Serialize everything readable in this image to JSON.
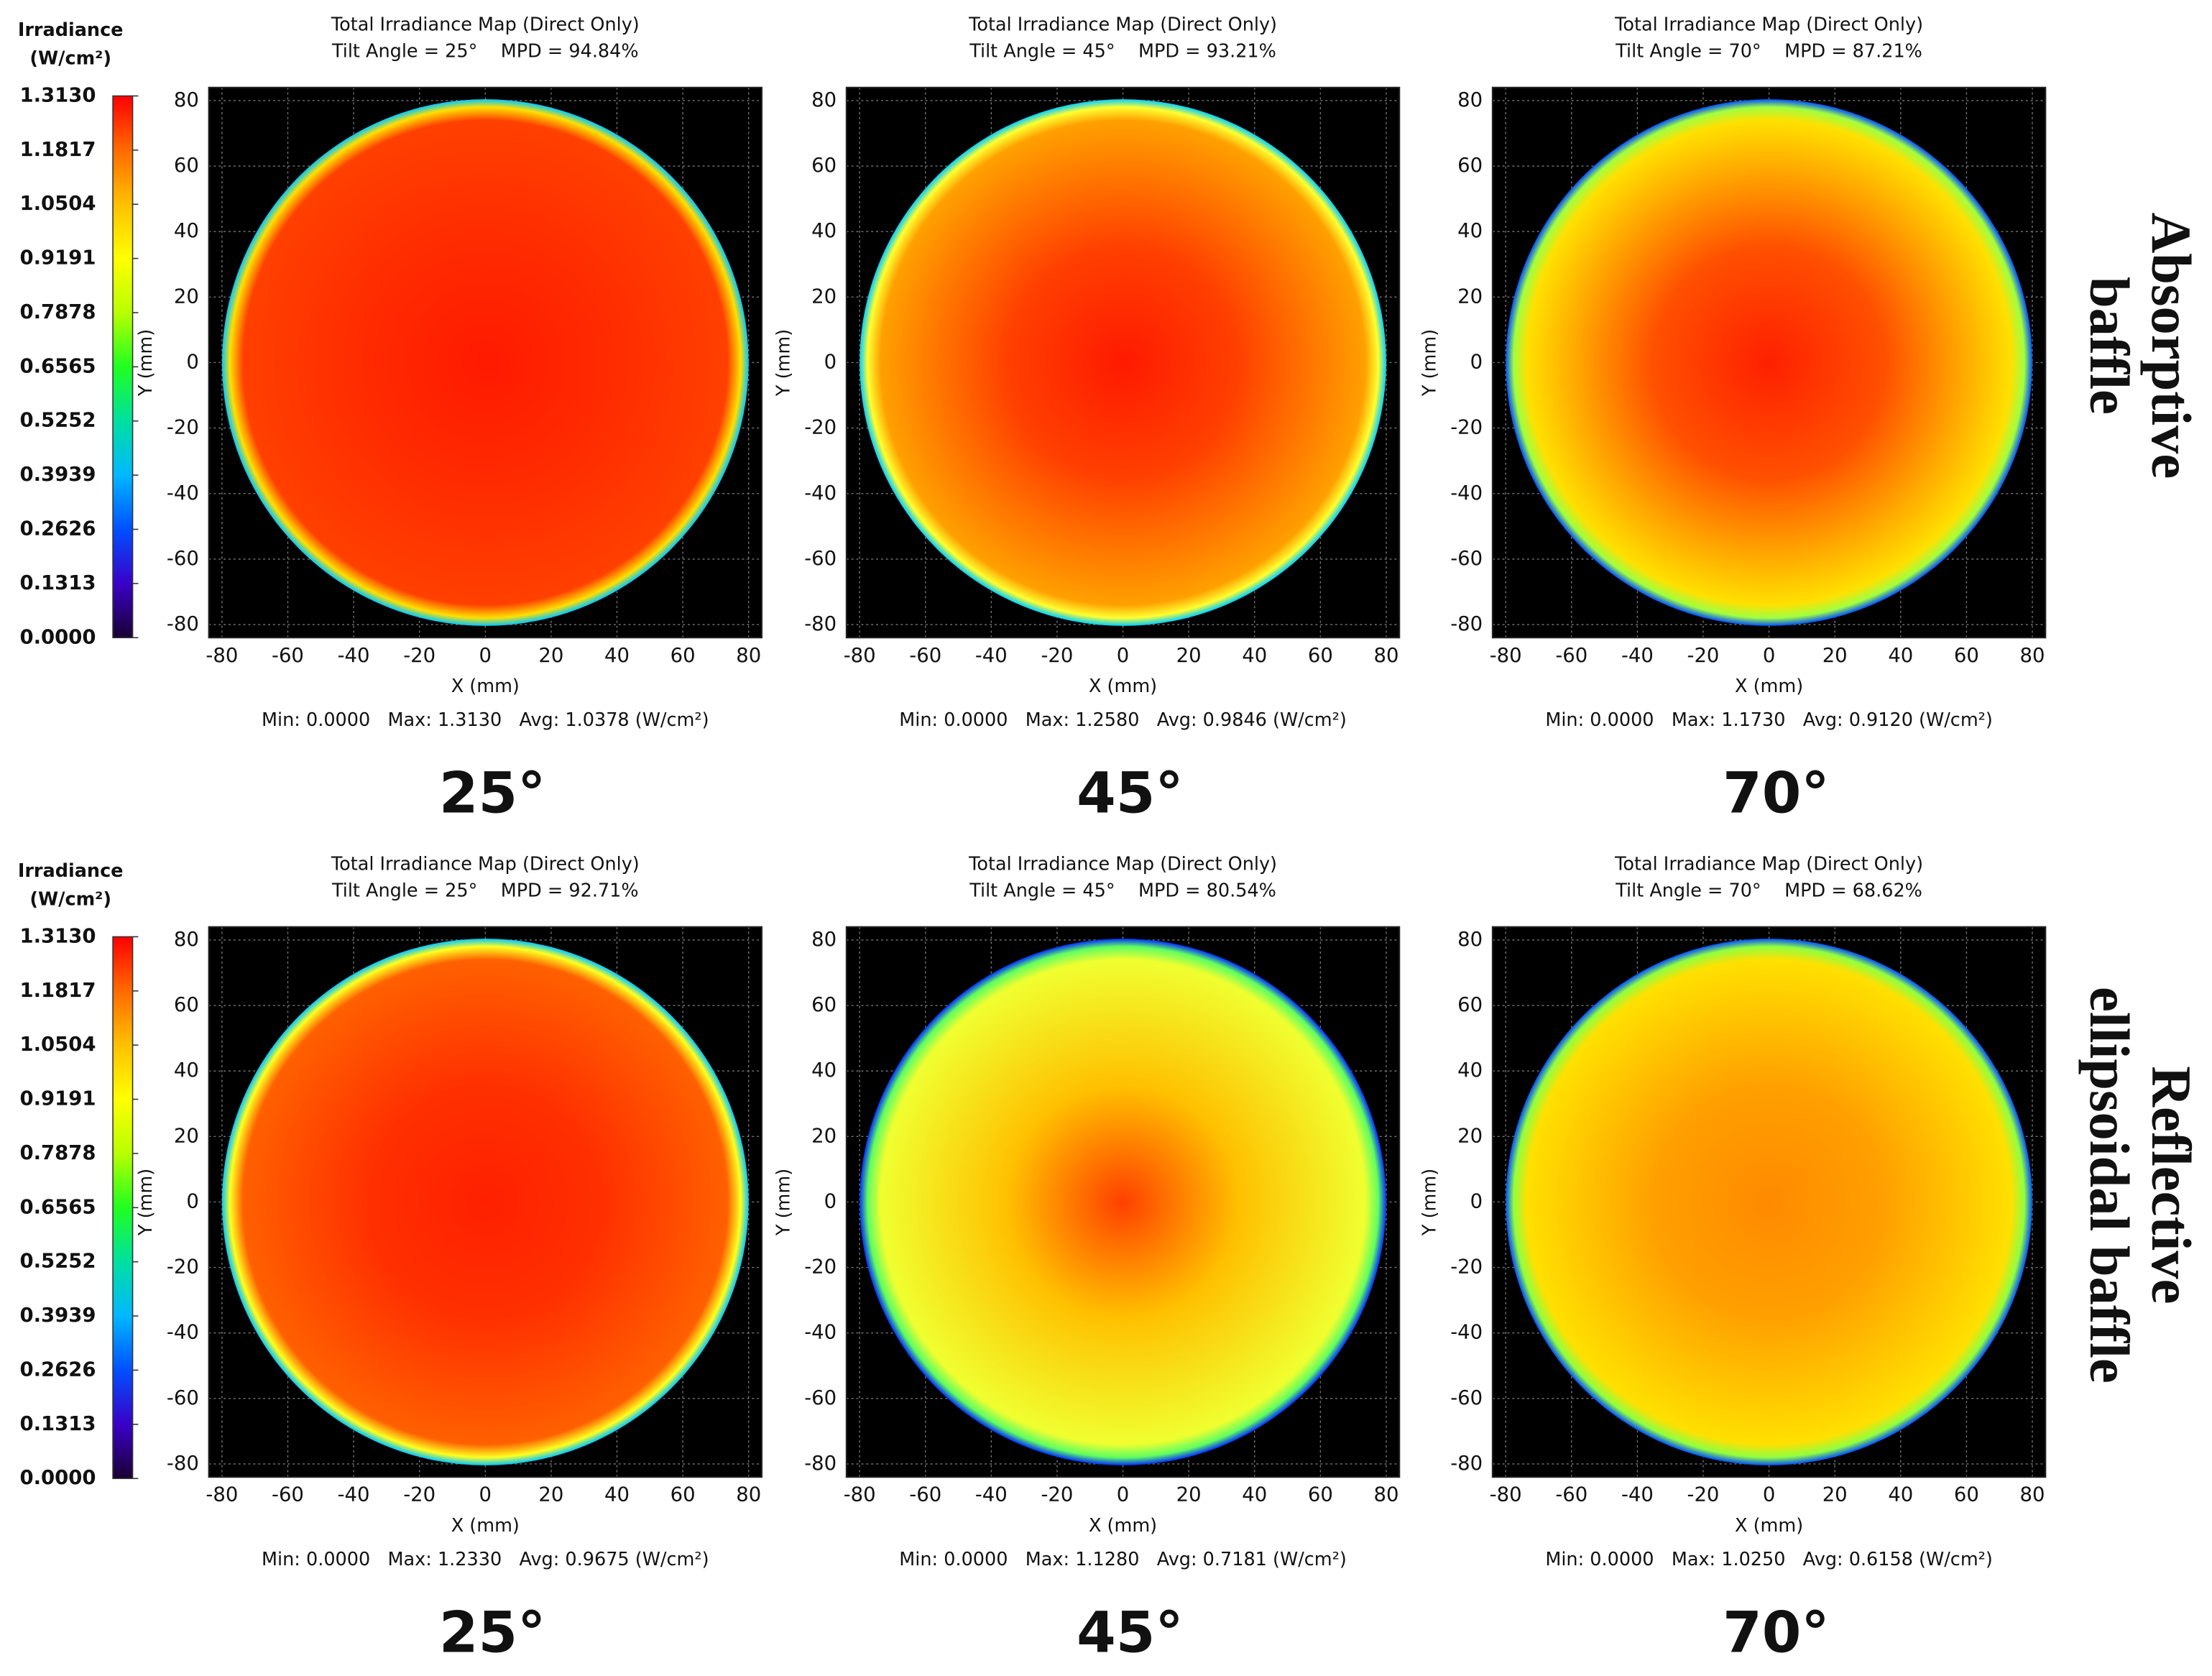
{
  "row_labels": [
    [
      "Absorptive",
      "baffle"
    ],
    [
      "Reflective",
      "ellipsoidal baffle"
    ]
  ],
  "chart_data": [
    {
      "type": "colorbar",
      "title": "Irradiance",
      "unit": "(W/cm²)",
      "clim": [
        0,
        1.313
      ],
      "colors": [
        "#1a0033",
        "#3a00c8",
        "#0050ff",
        "#00b8ff",
        "#00e0a0",
        "#20ff20",
        "#b8ff00",
        "#ffff00",
        "#ffc000",
        "#ff6a00",
        "#ff0000"
      ],
      "ticks": [
        {
          "value": 0,
          "label": "0.0000"
        },
        0.1313,
        0.2626,
        0.3939,
        0.5252,
        0.6565,
        0.7878,
        0.9191,
        1.0504,
        1.1817,
        {
          "value": 1.313,
          "label": "1.3130"
        }
      ]
    },
    {
      "type": "heatmap",
      "title": "Total Irradiance Map (Direct Only)",
      "subtitle": "Tilt Angle = 25°    MPD = 94.84%",
      "xlabel": "X (mm)",
      "ylabel": "Y (mm)",
      "xlim": [
        -84,
        84
      ],
      "ylim": [
        -84,
        84
      ],
      "xticks": [
        -80,
        -60,
        -40,
        -20,
        0,
        20,
        40,
        60,
        80
      ],
      "yticks": [
        -80,
        -60,
        -40,
        -20,
        0,
        20,
        40,
        60,
        80
      ],
      "grid": true,
      "stats": "Min: 0.0000   Max: 1.3130   Avg: 1.0378 (W/cm²)",
      "angle_label": "25°",
      "fill_colors": [
        "#ff1a00",
        "#ff2a00",
        "#ff4000",
        "#ffe000",
        "#00c8ff"
      ]
    },
    {
      "type": "heatmap",
      "title": "Total Irradiance Map (Direct Only)",
      "subtitle": "Tilt Angle = 45°    MPD = 93.21%",
      "xlabel": "X (mm)",
      "ylabel": "Y (mm)",
      "xlim": [
        -84,
        84
      ],
      "ylim": [
        -84,
        84
      ],
      "xticks": [
        -80,
        -60,
        -40,
        -20,
        0,
        20,
        40,
        60,
        80
      ],
      "yticks": [
        -80,
        -60,
        -40,
        -20,
        0,
        20,
        40,
        60,
        80
      ],
      "grid": true,
      "stats": "Min: 0.0000   Max: 1.2580   Avg: 0.9846 (W/cm²)",
      "angle_label": "45°",
      "fill_colors": [
        "#ff1a00",
        "#ff4000",
        "#ffa000",
        "#ffff30",
        "#00d0ff"
      ]
    },
    {
      "type": "heatmap",
      "title": "Total Irradiance Map (Direct Only)",
      "subtitle": "Tilt Angle = 70°    MPD = 87.21%",
      "xlabel": "X (mm)",
      "ylabel": "Y (mm)",
      "xlim": [
        -84,
        84
      ],
      "ylim": [
        -84,
        84
      ],
      "xticks": [
        -80,
        -60,
        -40,
        -20,
        0,
        20,
        40,
        60,
        80
      ],
      "yticks": [
        -80,
        -60,
        -40,
        -20,
        0,
        20,
        40,
        60,
        80
      ],
      "grid": true,
      "stats": "Min: 0.0000   Max: 1.1730   Avg: 0.9120 (W/cm²)",
      "angle_label": "70°",
      "fill_colors": [
        "#ff2000",
        "#ff5000",
        "#ffe000",
        "#a0ff40",
        "#0050ff"
      ]
    },
    {
      "type": "colorbar",
      "title": "Irradiance",
      "unit": "(W/cm²)",
      "clim": [
        0,
        1.313
      ],
      "colors": [
        "#1a0033",
        "#3a00c8",
        "#0050ff",
        "#00b8ff",
        "#00e0a0",
        "#20ff20",
        "#b8ff00",
        "#ffff00",
        "#ffc000",
        "#ff6a00",
        "#ff0000"
      ],
      "ticks": [
        {
          "value": 0,
          "label": "0.0000"
        },
        0.1313,
        0.2626,
        0.3939,
        0.5252,
        0.6565,
        0.7878,
        0.9191,
        1.0504,
        1.1817,
        {
          "value": 1.313,
          "label": "1.3130"
        }
      ]
    },
    {
      "type": "heatmap",
      "title": "Total Irradiance Map (Direct Only)",
      "subtitle": "Tilt Angle = 25°    MPD = 92.71%",
      "xlabel": "X (mm)",
      "ylabel": "Y (mm)",
      "xlim": [
        -84,
        84
      ],
      "ylim": [
        -84,
        84
      ],
      "xticks": [
        -80,
        -60,
        -40,
        -20,
        0,
        20,
        40,
        60,
        80
      ],
      "yticks": [
        -80,
        -60,
        -40,
        -20,
        0,
        20,
        40,
        60,
        80
      ],
      "grid": true,
      "stats": "Min: 0.0000   Max: 1.2330   Avg: 0.9675 (W/cm²)",
      "angle_label": "25°",
      "fill_colors": [
        "#ff2000",
        "#ff3000",
        "#ff6000",
        "#ffff20",
        "#00c8ff"
      ]
    },
    {
      "type": "heatmap",
      "title": "Total Irradiance Map (Direct Only)",
      "subtitle": "Tilt Angle = 45°    MPD = 80.54%",
      "xlabel": "X (mm)",
      "ylabel": "Y (mm)",
      "xlim": [
        -84,
        84
      ],
      "ylim": [
        -84,
        84
      ],
      "xticks": [
        -80,
        -60,
        -40,
        -20,
        0,
        20,
        40,
        60,
        80
      ],
      "yticks": [
        -80,
        -60,
        -40,
        -20,
        0,
        20,
        40,
        60,
        80
      ],
      "grid": true,
      "stats": "Min: 0.0000   Max: 1.1280   Avg: 0.7181 (W/cm²)",
      "angle_label": "45°",
      "fill_colors": [
        "#ff4000",
        "#ffc000",
        "#f0ff30",
        "#60ff60",
        "#0030ff"
      ]
    },
    {
      "type": "heatmap",
      "title": "Total Irradiance Map (Direct Only)",
      "subtitle": "Tilt Angle = 70°    MPD = 68.62%",
      "xlabel": "X (mm)",
      "ylabel": "Y (mm)",
      "xlim": [
        -84,
        84
      ],
      "ylim": [
        -84,
        84
      ],
      "xticks": [
        -80,
        -60,
        -40,
        -20,
        0,
        20,
        40,
        60,
        80
      ],
      "yticks": [
        -80,
        -60,
        -40,
        -20,
        0,
        20,
        40,
        60,
        80
      ],
      "grid": true,
      "stats": "Min: 0.0000   Max: 1.0250   Avg: 0.6158 (W/cm²)",
      "angle_label": "70°",
      "fill_colors": [
        "#ff8a00",
        "#ffa000",
        "#ffe000",
        "#90ff40",
        "#0050ff"
      ]
    }
  ]
}
